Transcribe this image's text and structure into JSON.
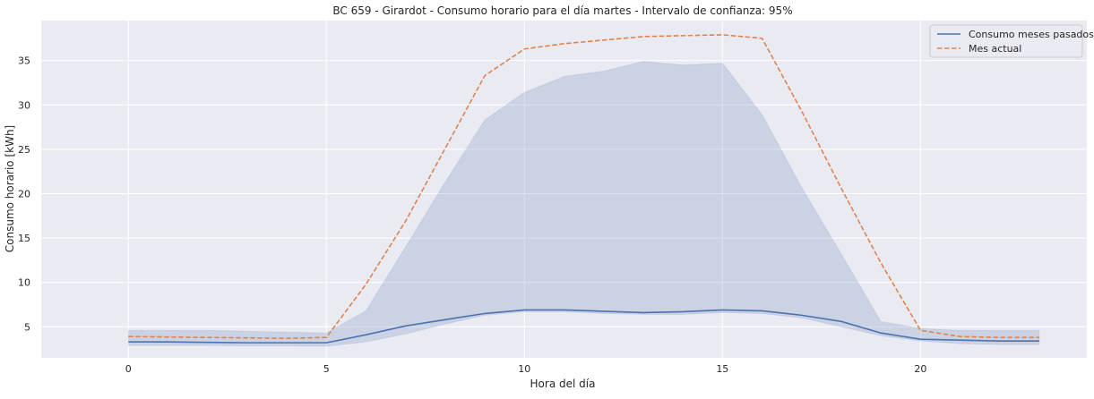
{
  "chart_data": {
    "type": "line",
    "title": "BC 659 - Girardot - Consumo horario para el día martes - Intervalo de confianza: 95%",
    "xlabel": "Hora del día",
    "ylabel": "Consumo horario [kWh]",
    "xlim": [
      -2.2,
      24.2
    ],
    "ylim": [
      1.5,
      39.5
    ],
    "xticks": [
      0,
      5,
      10,
      15,
      20
    ],
    "yticks": [
      5,
      10,
      15,
      20,
      25,
      30,
      35
    ],
    "grid": true,
    "legend_position": "top-right",
    "x": [
      0,
      1,
      2,
      3,
      4,
      5,
      6,
      7,
      8,
      9,
      10,
      11,
      12,
      13,
      14,
      15,
      16,
      17,
      18,
      19,
      20,
      21,
      22,
      23
    ],
    "series": [
      {
        "name": "Consumo meses pasados",
        "style": "solid",
        "color": "#4c72b0",
        "values": [
          3.3,
          3.3,
          3.25,
          3.2,
          3.2,
          3.2,
          4.1,
          5.1,
          5.8,
          6.5,
          6.9,
          6.9,
          6.75,
          6.6,
          6.7,
          6.9,
          6.8,
          6.3,
          5.6,
          4.3,
          3.6,
          3.5,
          3.4,
          3.4
        ],
        "ci_lower": [
          2.9,
          2.9,
          2.9,
          2.85,
          2.85,
          2.8,
          3.3,
          4.2,
          5.3,
          6.3,
          6.7,
          6.7,
          6.5,
          6.4,
          6.4,
          6.6,
          6.5,
          6.0,
          5.0,
          4.0,
          3.4,
          3.1,
          3.0,
          3.0
        ],
        "ci_upper": [
          4.6,
          4.6,
          4.6,
          4.5,
          4.4,
          4.3,
          6.8,
          14.0,
          21.3,
          28.3,
          31.4,
          33.2,
          33.8,
          34.9,
          34.5,
          34.7,
          28.9,
          20.7,
          13.2,
          5.6,
          4.8,
          4.6,
          4.6,
          4.6
        ]
      },
      {
        "name": "Mes actual",
        "style": "dashed",
        "color": "#dd8452",
        "values": [
          3.9,
          3.85,
          3.8,
          3.75,
          3.7,
          3.8,
          9.8,
          16.9,
          25.1,
          33.3,
          36.3,
          36.9,
          37.3,
          37.7,
          37.8,
          37.9,
          37.5,
          29.3,
          20.6,
          12.2,
          4.6,
          3.9,
          3.8,
          3.8
        ]
      }
    ]
  },
  "colors": {
    "plot_background": "#eaeaf2",
    "grid": "#ffffff",
    "ci_band": "#4c72b0"
  }
}
